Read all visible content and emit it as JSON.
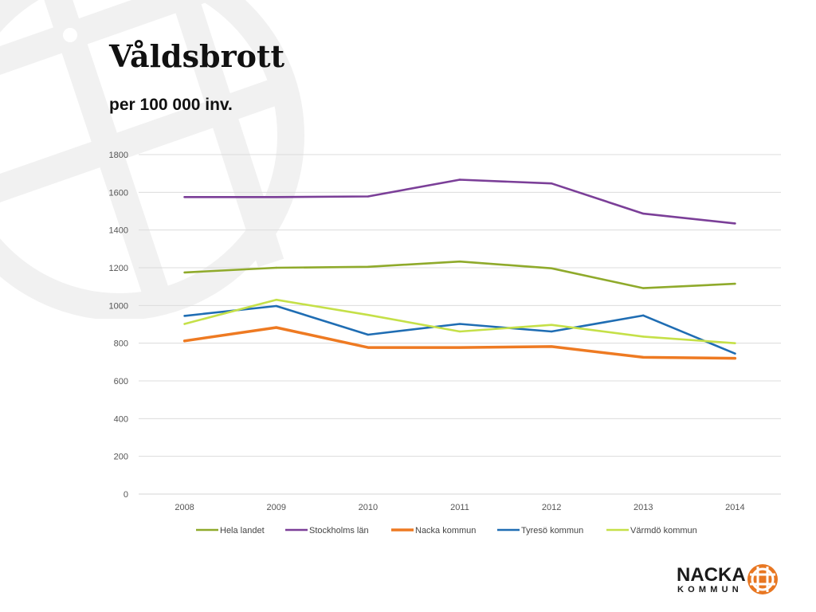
{
  "slide": {
    "title": "Våldsbrott",
    "subtitle": "per 100 000 inv."
  },
  "logo": {
    "line1": "NACKA",
    "line2": "KOMMUN",
    "accent": "#e87722"
  },
  "chart_data": {
    "type": "line",
    "title": "",
    "xlabel": "",
    "ylabel": "",
    "x": [
      "2008",
      "2009",
      "2010",
      "2011",
      "2012",
      "2013",
      "2014"
    ],
    "ylim": [
      0,
      1800
    ],
    "yticks": [
      0,
      200,
      400,
      600,
      800,
      1000,
      1200,
      1400,
      1600,
      1800
    ],
    "grid": true,
    "legend_position": "bottom",
    "series": [
      {
        "name": "Hela landet",
        "color": "#8faa2b",
        "values": [
          1175,
          1200,
          1205,
          1233,
          1197,
          1092,
          1115
        ]
      },
      {
        "name": "Stockholms län",
        "color": "#7b3f98",
        "values": [
          1575,
          1575,
          1578,
          1667,
          1647,
          1487,
          1435
        ]
      },
      {
        "name": "Nacka kommun",
        "color": "#ee7a22",
        "values": [
          812,
          883,
          777,
          777,
          782,
          725,
          720
        ]
      },
      {
        "name": "Tyresö kommun",
        "color": "#1f6db3",
        "values": [
          945,
          997,
          845,
          902,
          862,
          947,
          745
        ]
      },
      {
        "name": "Värmdö kommun",
        "color": "#c5e048",
        "values": [
          902,
          1030,
          950,
          862,
          897,
          835,
          800
        ]
      }
    ]
  }
}
